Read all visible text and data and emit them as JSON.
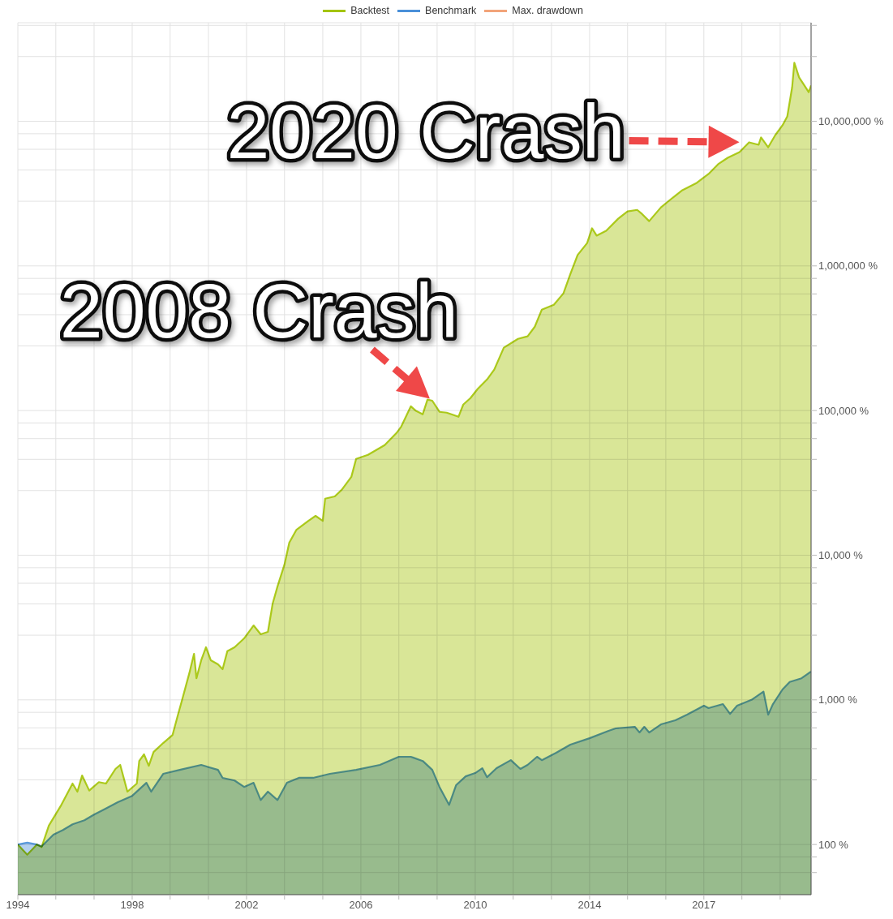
{
  "chart_data": {
    "type": "area",
    "log": true,
    "grid": true,
    "legend": "top",
    "xlim": [
      "1994-01-01",
      "2021-10-01"
    ],
    "xticks": [
      {
        "value": "1994-01-01",
        "label": "1994"
      },
      {
        "value": "1995-05-01",
        "label": null
      },
      {
        "value": "1996-09-01",
        "label": null
      },
      {
        "value": "1998-01-01",
        "label": "1998"
      },
      {
        "value": "1999-05-01",
        "label": null
      },
      {
        "value": "2000-09-01",
        "label": null
      },
      {
        "value": "2002-01-01",
        "label": "2002"
      },
      {
        "value": "2003-05-01",
        "label": null
      },
      {
        "value": "2004-09-01",
        "label": null
      },
      {
        "value": "2006-01-01",
        "label": "2006"
      },
      {
        "value": "2007-05-01",
        "label": null
      },
      {
        "value": "2008-09-01",
        "label": null
      },
      {
        "value": "2010-01-01",
        "label": "2010"
      },
      {
        "value": "2011-05-01",
        "label": null
      },
      {
        "value": "2012-09-01",
        "label": null
      },
      {
        "value": "2014-01-01",
        "label": "2014"
      },
      {
        "value": "2015-05-01",
        "label": null
      },
      {
        "value": "2016-09-01",
        "label": null
      },
      {
        "value": "2017-12-31",
        "label": "2017"
      },
      {
        "value": "2019-05-01",
        "label": null
      },
      {
        "value": "2020-09-01",
        "label": null
      }
    ],
    "ylim": [
      45,
      48000000
    ],
    "yticks": [
      {
        "value": 64,
        "label": null
      },
      {
        "value": 82,
        "label": null
      },
      {
        "value": 100,
        "label": "100 %"
      },
      {
        "value": 280,
        "label": null
      },
      {
        "value": 460,
        "label": null
      },
      {
        "value": 640,
        "label": null
      },
      {
        "value": 820,
        "label": null
      },
      {
        "value": 1000,
        "label": "1,000 %"
      },
      {
        "value": 2800,
        "label": null
      },
      {
        "value": 4600,
        "label": null
      },
      {
        "value": 6400,
        "label": null
      },
      {
        "value": 8200,
        "label": null
      },
      {
        "value": 10000,
        "label": "10,000 %"
      },
      {
        "value": 28000,
        "label": null
      },
      {
        "value": 46000,
        "label": null
      },
      {
        "value": 64000,
        "label": null
      },
      {
        "value": 82000,
        "label": null
      },
      {
        "value": 100000,
        "label": "100,000 %"
      },
      {
        "value": 280000,
        "label": null
      },
      {
        "value": 460000,
        "label": null
      },
      {
        "value": 640000,
        "label": null
      },
      {
        "value": 820000,
        "label": null
      },
      {
        "value": 1000000,
        "label": "1,000,000 %"
      },
      {
        "value": 2800000,
        "label": null
      },
      {
        "value": 4600000,
        "label": null
      },
      {
        "value": 6400000,
        "label": null
      },
      {
        "value": 8200000,
        "label": null
      },
      {
        "value": 10000000,
        "label": "10,000,000 %"
      },
      {
        "value": 28000000,
        "label": null
      },
      {
        "value": 46000000,
        "label": null
      }
    ],
    "annotations": [
      {
        "text": "2020 Crash",
        "x": "2019-08",
        "y": 7150000
      },
      {
        "text": "2008 Crash",
        "x": "2008-07",
        "y": 117000
      }
    ],
    "series": [
      {
        "name": "Backtest",
        "color": "#a4c408",
        "x": [
          "1994-01",
          "1994-05",
          "1994-09",
          "1994-11",
          "1995-02",
          "1995-07",
          "1995-12",
          "1996-02",
          "1996-04",
          "1996-07",
          "1996-11",
          "1997-02",
          "1997-06",
          "1997-08",
          "1997-11",
          "1998-03",
          "1998-04",
          "1998-06",
          "1998-08",
          "1998-10",
          "1999-02",
          "1999-06",
          "1999-08",
          "1999-10",
          "2000-01",
          "2000-03",
          "2000-04",
          "2000-06",
          "2000-08",
          "2000-10",
          "2001-01",
          "2001-03",
          "2001-05",
          "2001-08",
          "2001-12",
          "2002-04",
          "2002-07",
          "2002-10",
          "2002-12",
          "2003-02",
          "2003-05",
          "2003-07",
          "2003-10",
          "2004-03",
          "2004-06",
          "2004-09",
          "2004-10",
          "2005-02",
          "2005-05",
          "2005-09",
          "2005-11",
          "2006-04",
          "2006-11",
          "2007-04",
          "2007-06",
          "2007-10",
          "2007-12",
          "2008-03",
          "2008-05",
          "2008-07",
          "2008-10",
          "2009-01",
          "2009-06",
          "2009-08",
          "2009-11",
          "2010-02",
          "2010-06",
          "2010-09",
          "2011-01",
          "2011-07",
          "2011-11",
          "2012-02",
          "2012-05",
          "2012-10",
          "2013-02",
          "2013-05",
          "2013-08",
          "2013-12",
          "2014-02",
          "2014-04",
          "2014-08",
          "2015-01",
          "2015-05",
          "2015-09",
          "2015-11",
          "2016-02",
          "2016-07",
          "2016-12",
          "2017-04",
          "2017-10",
          "2018-03",
          "2018-07",
          "2018-11",
          "2019-04",
          "2019-08",
          "2019-12",
          "2020-01",
          "2020-04",
          "2020-07",
          "2020-10",
          "2020-12",
          "2021-02",
          "2021-03",
          "2021-05",
          "2021-07",
          "2021-09",
          "2021-10"
        ],
        "values": [
          100,
          85,
          100,
          96,
          135,
          184,
          264,
          232,
          300,
          236,
          270,
          264,
          333,
          355,
          232,
          264,
          378,
          420,
          350,
          436,
          503,
          572,
          760,
          1000,
          1530,
          2080,
          1410,
          1880,
          2310,
          1880,
          1760,
          1630,
          2170,
          2310,
          2660,
          3270,
          2840,
          2950,
          4640,
          6090,
          8630,
          12200,
          15000,
          17300,
          18700,
          17300,
          24600,
          25500,
          28300,
          34800,
          46300,
          49400,
          57700,
          70000,
          77600,
          107000,
          100000,
          94200,
          119000,
          117000,
          98000,
          96700,
          90600,
          110000,
          122000,
          141000,
          164000,
          192000,
          272000,
          313000,
          326000,
          380000,
          499000,
          539000,
          646000,
          881000,
          1190000,
          1440000,
          1820000,
          1620000,
          1750000,
          2120000,
          2380000,
          2440000,
          2290000,
          2040000,
          2540000,
          2970000,
          3340000,
          3750000,
          4320000,
          5050000,
          5590000,
          6120000,
          7150000,
          6880000,
          7730000,
          6610000,
          8030000,
          9380000,
          10800000,
          17200000,
          25400000,
          20100000,
          17900000,
          15900000,
          17700000
        ]
      },
      {
        "name": "Benchmark",
        "color": "#4a90d9",
        "x": [
          "1994-01",
          "1994-05",
          "1994-09",
          "1994-11",
          "1995-04",
          "1995-08",
          "1995-12",
          "1996-05",
          "1996-09",
          "1997-01",
          "1997-07",
          "1998-01",
          "1998-07",
          "1998-09",
          "1999-02",
          "1999-09",
          "2000-06",
          "2001-01",
          "2001-03",
          "2001-08",
          "2001-12",
          "2002-04",
          "2002-07",
          "2002-10",
          "2003-02",
          "2003-06",
          "2003-11",
          "2004-05",
          "2004-12",
          "2005-11",
          "2006-09",
          "2007-05",
          "2007-10",
          "2008-03",
          "2008-07",
          "2008-10",
          "2009-02",
          "2009-05",
          "2009-09",
          "2010-01",
          "2010-04",
          "2010-06",
          "2010-10",
          "2011-04",
          "2011-08",
          "2011-11",
          "2012-03",
          "2012-05",
          "2012-11",
          "2013-05",
          "2014-01",
          "2014-09",
          "2014-12",
          "2015-08",
          "2015-10",
          "2015-12",
          "2016-02",
          "2016-07",
          "2017-01",
          "2017-06",
          "2018-01",
          "2018-03",
          "2018-09",
          "2018-12",
          "2019-03",
          "2019-09",
          "2020-02",
          "2020-04",
          "2020-06",
          "2020-10",
          "2021-01",
          "2021-06",
          "2021-10"
        ],
        "values": [
          100,
          103,
          100,
          97,
          117,
          126,
          138,
          147,
          161,
          174,
          196,
          217,
          267,
          232,
          308,
          328,
          355,
          328,
          289,
          277,
          250,
          267,
          203,
          232,
          203,
          267,
          289,
          289,
          308,
          328,
          355,
          404,
          404,
          378,
          328,
          250,
          188,
          257,
          296,
          312,
          337,
          292,
          337,
          383,
          333,
          355,
          404,
          383,
          431,
          490,
          543,
          611,
          635,
          651,
          595,
          651,
          595,
          677,
          722,
          790,
          911,
          877,
          935,
          800,
          911,
          1000,
          1140,
          790,
          935,
          1180,
          1330,
          1410,
          1570
        ]
      },
      {
        "name": "Max. drawdown",
        "color": "#f2a47a"
      }
    ]
  }
}
